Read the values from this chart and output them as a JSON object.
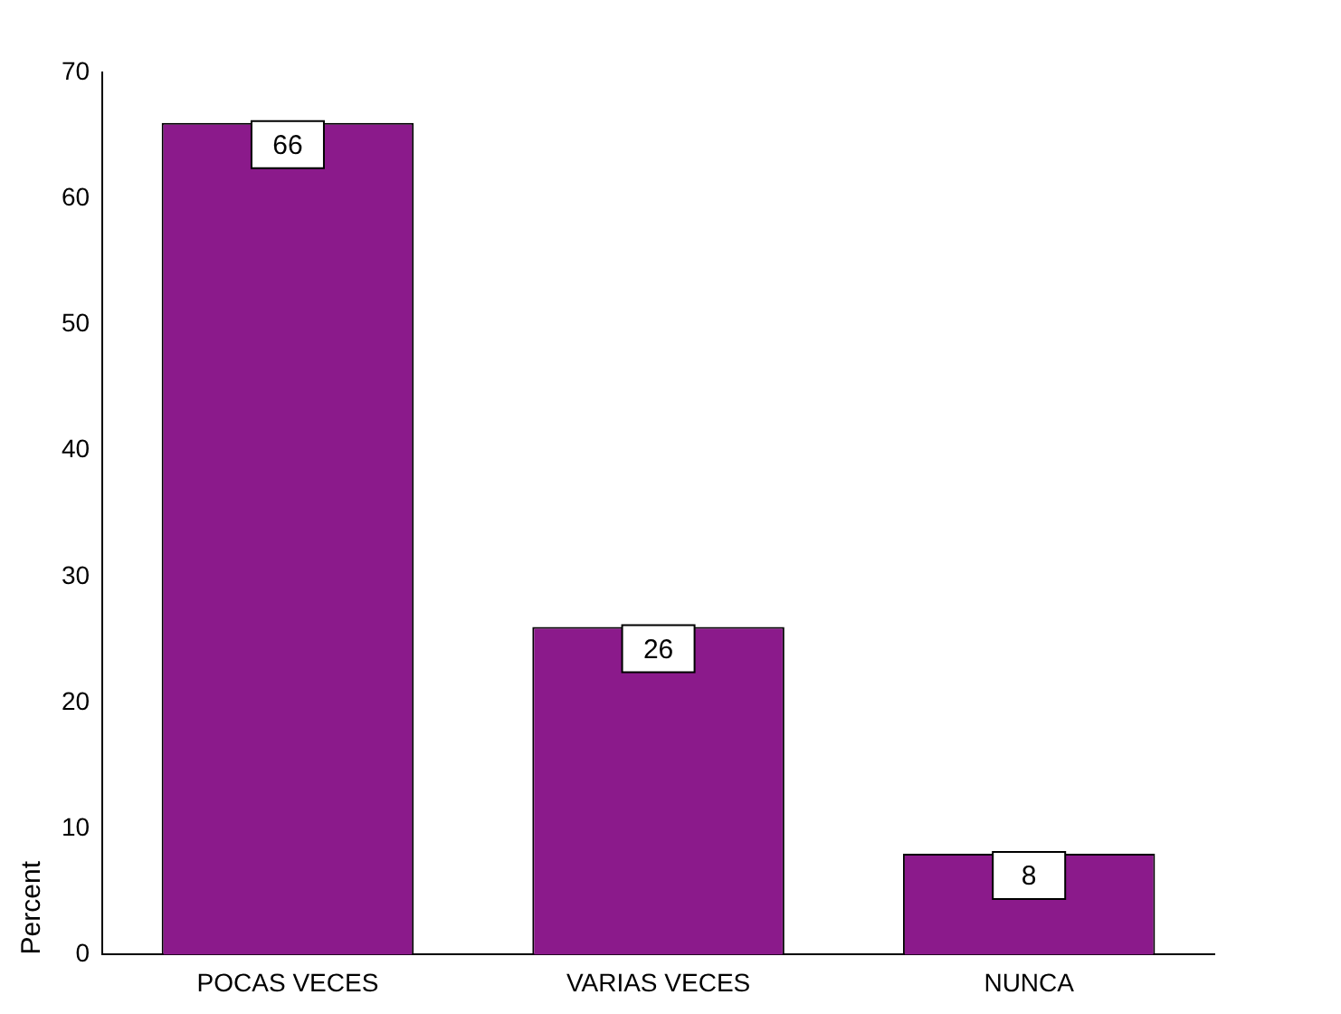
{
  "chart_data": {
    "type": "bar",
    "ylabel": "Percent",
    "categories": [
      "POCAS VECES",
      "VARIAS VECES",
      "NUNCA"
    ],
    "values": [
      66,
      26,
      8
    ],
    "color": "#8b1a8b",
    "ylim": [
      0,
      70
    ],
    "yticks": [
      0,
      10,
      20,
      30,
      40,
      50,
      60,
      70
    ],
    "grid": false,
    "legend": false,
    "data_labels": true
  }
}
